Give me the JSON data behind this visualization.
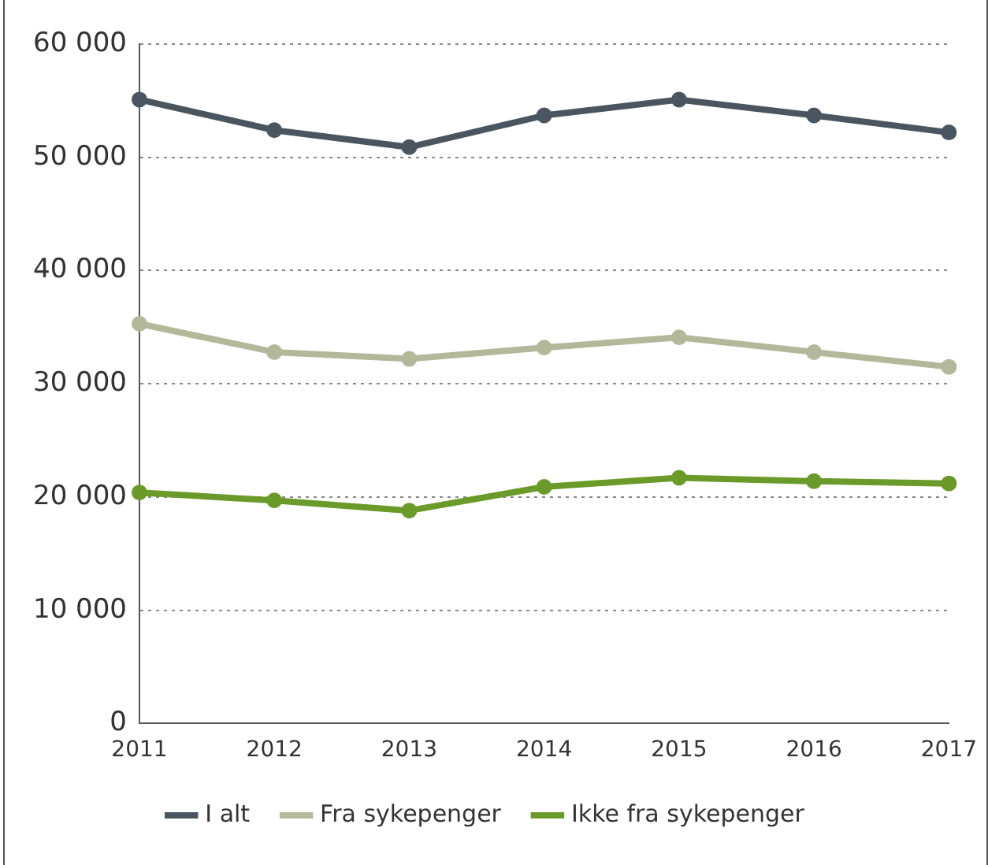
{
  "chart_data": {
    "type": "line",
    "categories": [
      "2011",
      "2012",
      "2013",
      "2014",
      "2015",
      "2016",
      "2017"
    ],
    "series": [
      {
        "name": "I alt",
        "color": "#4a5560",
        "values": [
          55100,
          52400,
          50900,
          53700,
          55100,
          53700,
          52200
        ]
      },
      {
        "name": "Fra sykepenger",
        "color": "#b3b89a",
        "values": [
          35300,
          32800,
          32200,
          33200,
          34100,
          32800,
          31500
        ]
      },
      {
        "name": "Ikke fra sykepenger",
        "color": "#6a9a2a",
        "values": [
          20400,
          19700,
          18800,
          20900,
          21700,
          21400,
          21200
        ]
      }
    ],
    "ylim": [
      0,
      60000
    ],
    "yticks": [
      {
        "value": 0,
        "label": "0"
      },
      {
        "value": 10000,
        "label": "10 000"
      },
      {
        "value": 20000,
        "label": "20 000"
      },
      {
        "value": 30000,
        "label": "30 000"
      },
      {
        "value": 40000,
        "label": "40 000"
      },
      {
        "value": 50000,
        "label": "50 000"
      },
      {
        "value": 60000,
        "label": "60 000"
      }
    ],
    "grid": "y",
    "legend": "bottom",
    "marker": "circle",
    "line_style": "solid"
  }
}
